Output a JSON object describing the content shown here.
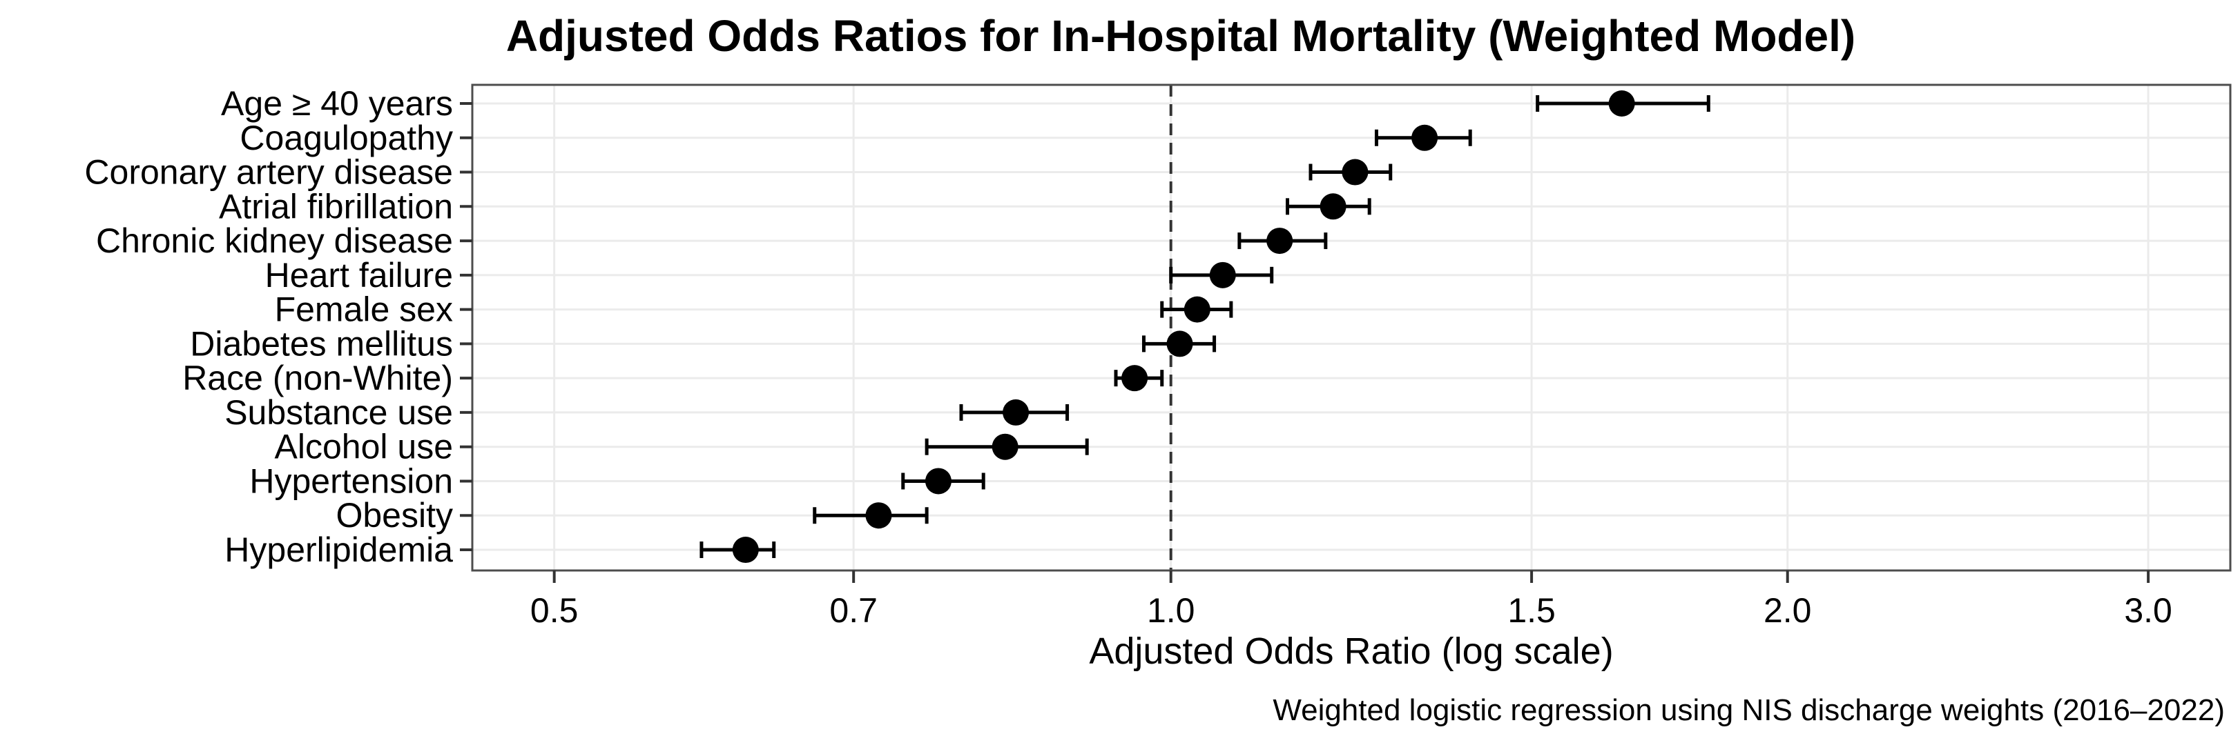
{
  "chart_data": {
    "type": "scatter",
    "subtype": "forest-plot",
    "title": "Adjusted Odds Ratios for In-Hospital Mortality (Weighted Model)",
    "xlabel": "Adjusted Odds Ratio (log scale)",
    "caption": "Weighted logistic regression using NIS discharge weights (2016–2022)",
    "x_scale": "log10",
    "xlim": [
      0.456,
      3.29
    ],
    "x_ticks": [
      {
        "value": 0.5,
        "label": "0.5"
      },
      {
        "value": 0.7,
        "label": "0.7"
      },
      {
        "value": 1.0,
        "label": "1.0"
      },
      {
        "value": 1.5,
        "label": "1.5"
      },
      {
        "value": 2.0,
        "label": "2.0"
      },
      {
        "value": 3.0,
        "label": "3.0"
      }
    ],
    "reference_line": 1.0,
    "grid": "major only, on",
    "legend": "none",
    "categories": [
      "Age ≥ 40 years",
      "Coagulopathy",
      "Coronary artery disease",
      "Atrial fibrillation",
      "Chronic kidney disease",
      "Heart failure",
      "Female sex",
      "Diabetes mellitus",
      "Race (non-White)",
      "Substance use",
      "Alcohol use",
      "Hypertension",
      "Obesity",
      "Hyperlipidemia"
    ],
    "points": [
      {
        "label": "Age ≥ 40 years",
        "or": 1.66,
        "ci_low": 1.51,
        "ci_high": 1.83
      },
      {
        "label": "Coagulopathy",
        "or": 1.33,
        "ci_low": 1.26,
        "ci_high": 1.4
      },
      {
        "label": "Coronary artery disease",
        "or": 1.23,
        "ci_low": 1.17,
        "ci_high": 1.28
      },
      {
        "label": "Atrial fibrillation",
        "or": 1.2,
        "ci_low": 1.14,
        "ci_high": 1.25
      },
      {
        "label": "Chronic kidney disease",
        "or": 1.13,
        "ci_low": 1.08,
        "ci_high": 1.19
      },
      {
        "label": "Heart failure",
        "or": 1.06,
        "ci_low": 1.0,
        "ci_high": 1.12
      },
      {
        "label": "Female sex",
        "or": 1.03,
        "ci_low": 0.99,
        "ci_high": 1.07
      },
      {
        "label": "Diabetes mellitus",
        "or": 1.01,
        "ci_low": 0.97,
        "ci_high": 1.05
      },
      {
        "label": "Race (non-White)",
        "or": 0.96,
        "ci_low": 0.94,
        "ci_high": 0.99
      },
      {
        "label": "Substance use",
        "or": 0.84,
        "ci_low": 0.79,
        "ci_high": 0.89
      },
      {
        "label": "Alcohol use",
        "or": 0.83,
        "ci_low": 0.76,
        "ci_high": 0.91
      },
      {
        "label": "Hypertension",
        "or": 0.77,
        "ci_low": 0.74,
        "ci_high": 0.81
      },
      {
        "label": "Obesity",
        "or": 0.72,
        "ci_low": 0.67,
        "ci_high": 0.76
      },
      {
        "label": "Hyperlipidemia",
        "or": 0.62,
        "ci_low": 0.59,
        "ci_high": 0.64
      }
    ]
  },
  "colors": {
    "background": "#ffffff",
    "point": "#000000",
    "error_bar": "#000000",
    "gridline": "#ebebeb",
    "panel_border": "#4d4d4d",
    "reference_line": "#333333",
    "tick": "#333333",
    "text": "#000000"
  }
}
